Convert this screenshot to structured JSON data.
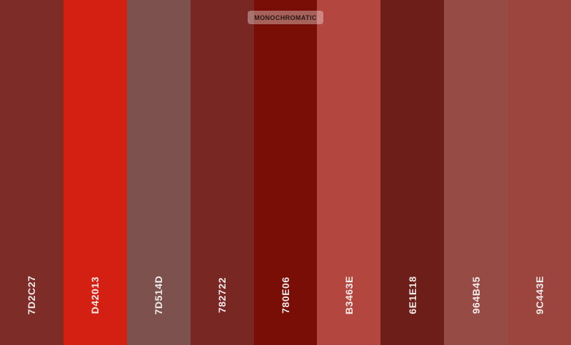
{
  "palette": {
    "type_label": "MONOCHROMATIC",
    "swatches": [
      {
        "hex": "7D2C27",
        "color": "#7D2C27"
      },
      {
        "hex": "D42013",
        "color": "#D42013"
      },
      {
        "hex": "7D514D",
        "color": "#7D514D"
      },
      {
        "hex": "782722",
        "color": "#782722"
      },
      {
        "hex": "780E06",
        "color": "#780E06"
      },
      {
        "hex": "B3463E",
        "color": "#B3463E"
      },
      {
        "hex": "6E1E18",
        "color": "#6E1E18"
      },
      {
        "hex": "964B45",
        "color": "#964B45"
      },
      {
        "hex": "9C443E",
        "color": "#9C443E"
      }
    ]
  }
}
